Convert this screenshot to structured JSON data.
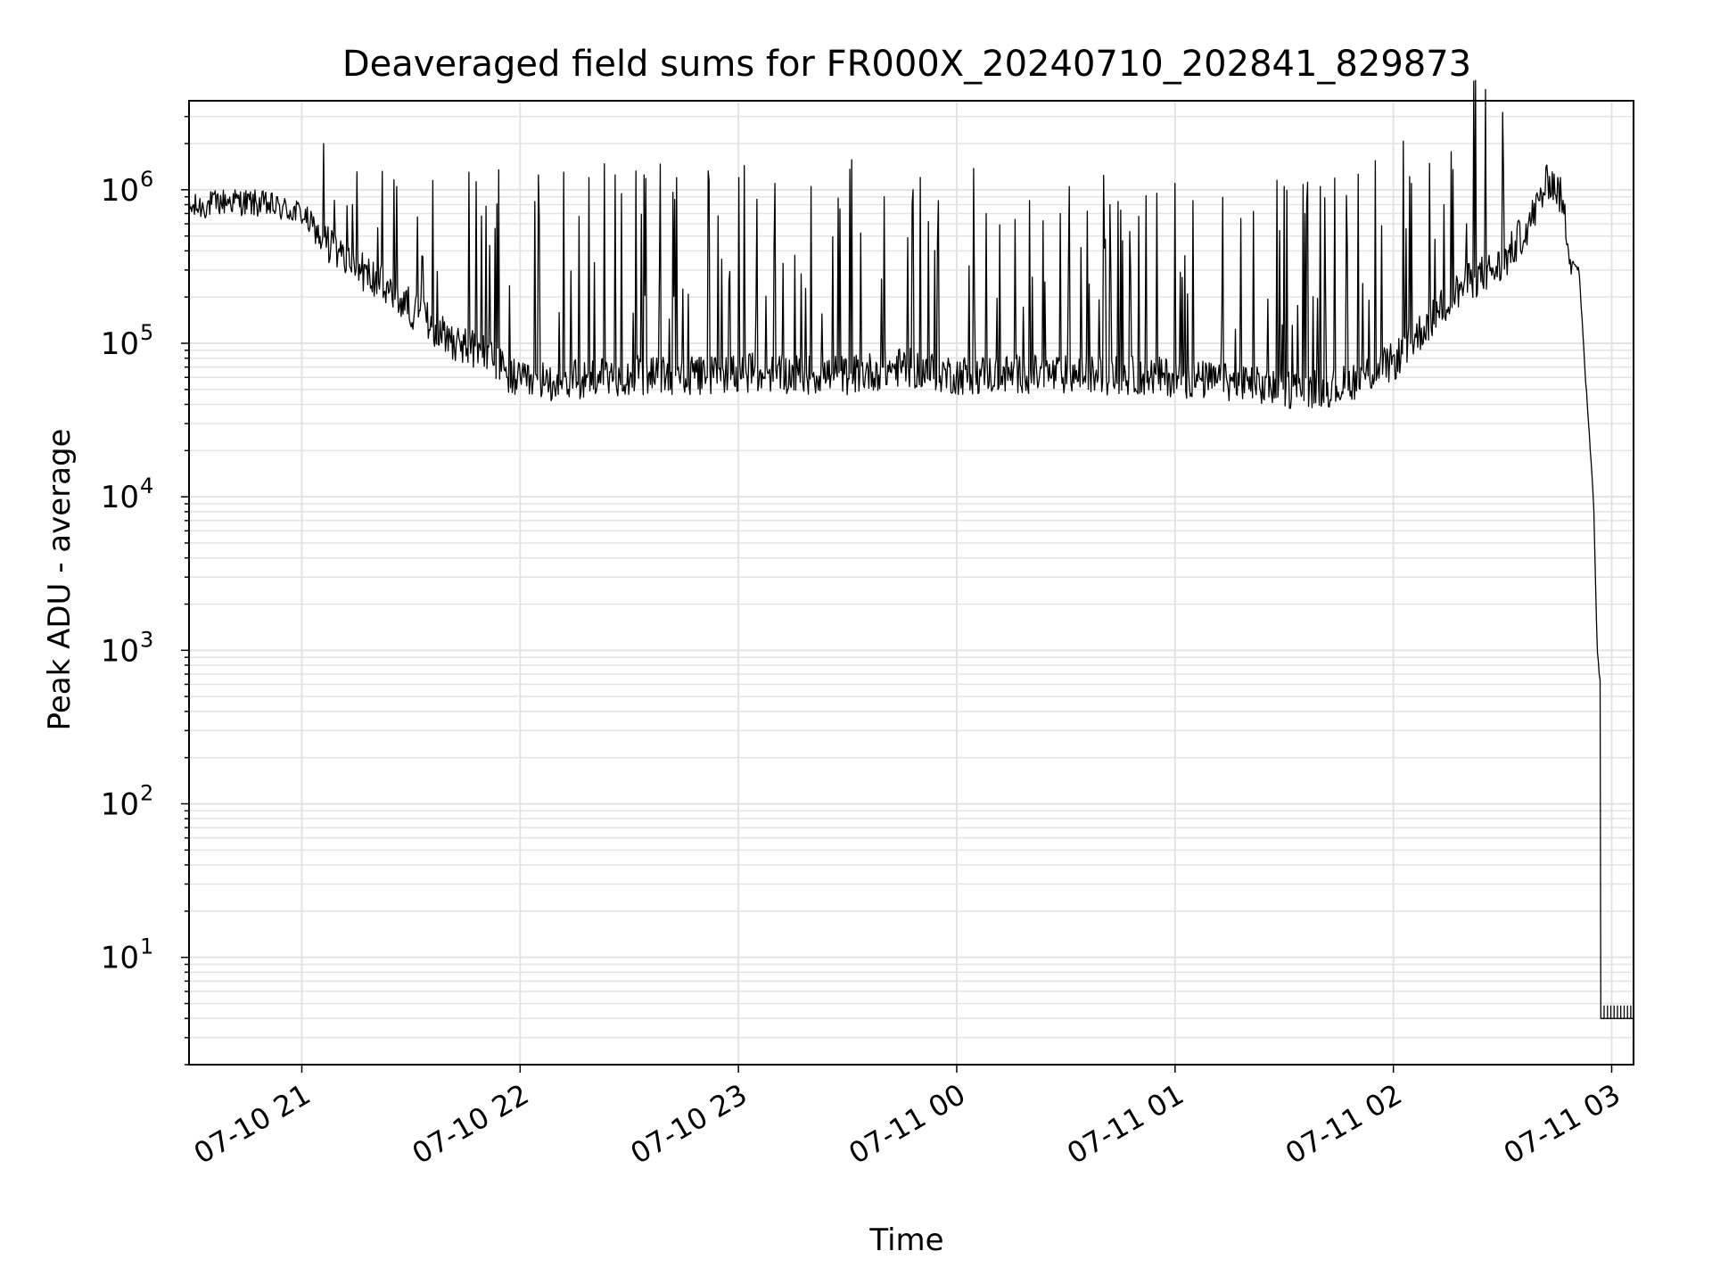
{
  "chart_data": {
    "type": "line",
    "title": "Deaveraged field sums for FR000X_20240710_202841_829873",
    "xlabel": "Time",
    "ylabel": "Peak ADU - average",
    "xscale": "time",
    "yscale": "log",
    "xlim": [
      "2024-07-10 20:29",
      "2024-07-11 03:06"
    ],
    "ylim": [
      2,
      3800000
    ],
    "grid": true,
    "x_ticks": [
      "07-10 21",
      "07-10 22",
      "07-10 23",
      "07-11 00",
      "07-11 01",
      "07-11 02",
      "07-11 03"
    ],
    "y_ticks": [
      {
        "base": "10",
        "exp": "1"
      },
      {
        "base": "10",
        "exp": "2"
      },
      {
        "base": "10",
        "exp": "3"
      },
      {
        "base": "10",
        "exp": "4"
      },
      {
        "base": "10",
        "exp": "5"
      },
      {
        "base": "10",
        "exp": "6"
      }
    ],
    "line_color": "#000000",
    "series": [
      {
        "x": [
          "2024-07-10 20:29",
          "2024-07-10 20:40",
          "2024-07-10 20:50",
          "2024-07-10 21:00",
          "2024-07-10 21:05",
          "2024-07-10 21:10",
          "2024-07-10 21:20",
          "2024-07-10 21:30",
          "2024-07-10 21:40",
          "2024-07-10 21:50",
          "2024-07-10 22:00",
          "2024-07-10 22:15",
          "2024-07-10 22:30",
          "2024-07-10 22:45",
          "2024-07-10 23:00",
          "2024-07-10 23:15",
          "2024-07-10 23:30",
          "2024-07-10 23:45",
          "2024-07-11 00:00",
          "2024-07-11 00:15",
          "2024-07-11 00:30",
          "2024-07-11 00:45",
          "2024-07-11 01:00",
          "2024-07-11 01:15",
          "2024-07-11 01:30",
          "2024-07-11 01:45",
          "2024-07-11 02:00",
          "2024-07-11 02:10",
          "2024-07-11 02:20",
          "2024-07-11 02:30",
          "2024-07-11 02:38",
          "2024-07-11 02:43",
          "2024-07-11 02:46",
          "2024-07-11 02:49",
          "2024-07-11 02:51",
          "2024-07-11 02:53",
          "2024-07-11 02:55",
          "2024-07-11 02:56",
          "2024-07-11 03:06"
        ],
        "y": [
          750000,
          850000,
          800000,
          700000,
          500000,
          380000,
          260000,
          170000,
          110000,
          85000,
          55000,
          58000,
          62000,
          60000,
          65000,
          63000,
          62000,
          70000,
          62000,
          63000,
          62000,
          62000,
          60000,
          55000,
          50000,
          52000,
          75000,
          140000,
          250000,
          320000,
          650000,
          1200000,
          900000,
          350000,
          300000,
          50000,
          10000,
          1000,
          4
        ]
      }
    ],
    "spikes": {
      "x": [
        "2024-07-10 21:06",
        "2024-07-10 21:26",
        "2024-07-10 21:36",
        "2024-07-10 21:46",
        "2024-07-10 21:54",
        "2024-07-10 22:05",
        "2024-07-10 22:12",
        "2024-07-10 22:19",
        "2024-07-10 22:26",
        "2024-07-10 22:34",
        "2024-07-10 22:43",
        "2024-07-10 22:52",
        "2024-07-10 23:00",
        "2024-07-10 23:10",
        "2024-07-10 23:20",
        "2024-07-10 23:28",
        "2024-07-10 23:40",
        "2024-07-10 23:48",
        "2024-07-10 23:55",
        "2024-07-11 00:08",
        "2024-07-11 00:20",
        "2024-07-11 00:31",
        "2024-07-11 00:42",
        "2024-07-11 00:55",
        "2024-07-11 01:05",
        "2024-07-11 01:18",
        "2024-07-11 01:30",
        "2024-07-11 01:40",
        "2024-07-11 01:55",
        "2024-07-11 02:05",
        "2024-07-11 02:20"
      ],
      "y": [
        2000000,
        1050000,
        1150000,
        1300000,
        1350000,
        1250000,
        1300000,
        1200000,
        1250000,
        1250000,
        1200000,
        1150000,
        1200000,
        1100000,
        1050000,
        750000,
        900000,
        1000000,
        850000,
        700000,
        850000,
        1050000,
        800000,
        950000,
        850000,
        650000,
        1050000,
        1050000,
        1550000,
        1100000,
        600000
      ]
    }
  }
}
